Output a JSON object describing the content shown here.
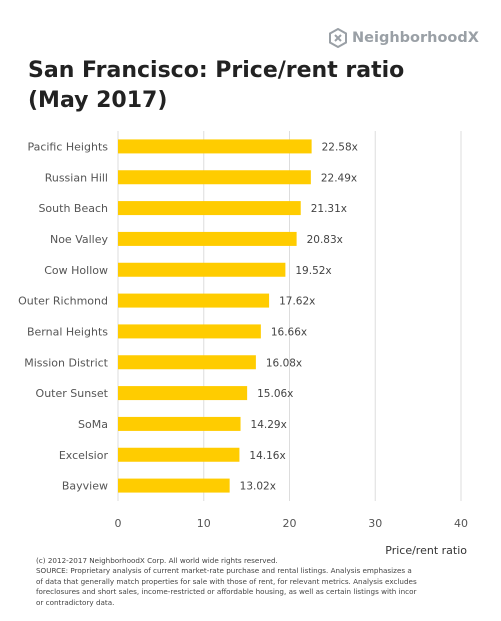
{
  "brand": {
    "name": "NeighborhoodX",
    "icon": "hexagon-x-logo-icon"
  },
  "title_line1": "San Francisco: Price/rent ratio",
  "title_line2": "(May 2017)",
  "chart_data": {
    "type": "bar",
    "orientation": "horizontal",
    "title": "San Francisco: Price/rent ratio (May 2017)",
    "xlabel": "Price/rent ratio",
    "ylabel": "",
    "categories": [
      "Pacific Heights",
      "Russian Hill",
      "South Beach",
      "Noe Valley",
      "Cow Hollow",
      "Outer Richmond",
      "Bernal Heights",
      "Mission District",
      "Outer Sunset",
      "SoMa",
      "Excelsior",
      "Bayview"
    ],
    "values": [
      22.58,
      22.49,
      21.31,
      20.83,
      19.52,
      17.62,
      16.66,
      16.08,
      15.06,
      14.29,
      14.16,
      13.02
    ],
    "data_labels": [
      "22.58x",
      "22.49x",
      "21.31x",
      "20.83x",
      "19.52x",
      "17.62x",
      "16.66x",
      "16.08x",
      "15.06x",
      "14.29x",
      "14.16x",
      "13.02x"
    ],
    "xlim": [
      0,
      40
    ],
    "xticks": [
      "0",
      "10",
      "20",
      "30",
      "40"
    ],
    "grid": true,
    "bar_color": "#FFCC00",
    "grid_color": "#dddddd"
  },
  "footer": {
    "copyright": "(c) 2012-2017 NeighborhoodX Corp. All world wide rights reserved.",
    "source_lines": [
      "SOURCE: Proprietary analysis of current market-rate purchase and rental listings. Analysis emphasizes a",
      "of data that generally match properties for sale with those of rent, for relevant metrics. Analysis excludes",
      "foreclosures and short sales, income-restricted or affordable housing, as well as certain listings with incor",
      "or contradictory data."
    ]
  }
}
